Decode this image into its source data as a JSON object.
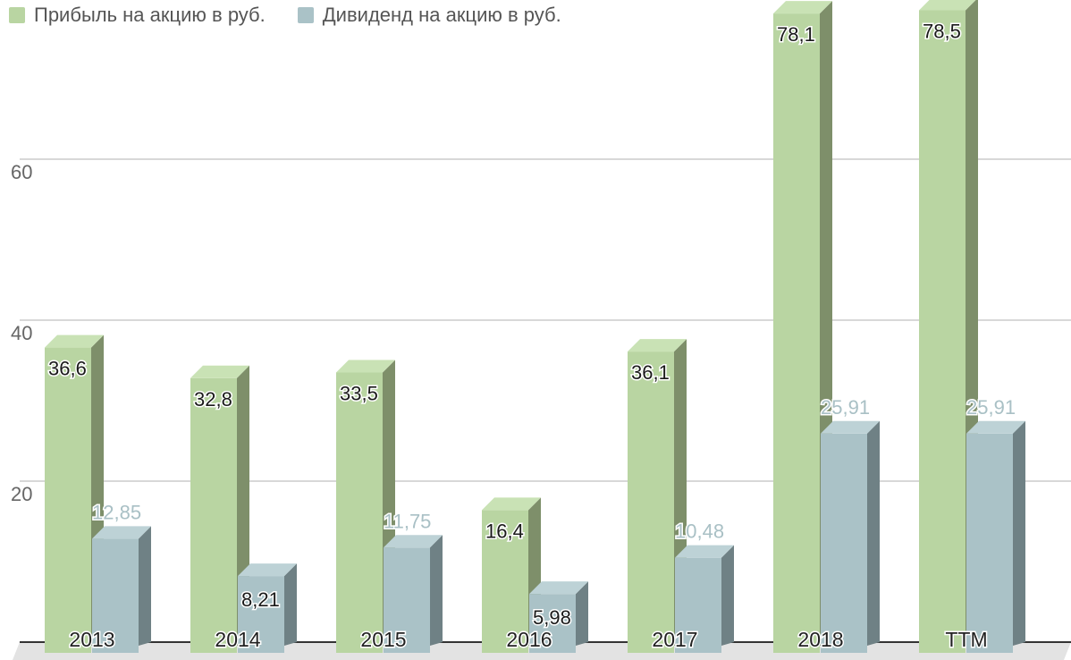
{
  "colors": {
    "profit_front": "#b9d5a2",
    "profit_side": "#7e8f6a",
    "profit_top": "#c9e2b5",
    "dividend_front": "#aac2c7",
    "dividend_side": "#6f8185",
    "dividend_top": "#bdd2d6",
    "grid": "#cccccc",
    "axis": "#333333",
    "floor": "#e3e3e3"
  },
  "chart_data": {
    "type": "bar",
    "categories": [
      "2013",
      "2014",
      "2015",
      "2016",
      "2017",
      "2018",
      "TTM"
    ],
    "series": [
      {
        "name": "Прибыль на акцию в руб.",
        "values": [
          36.6,
          32.8,
          33.5,
          16.4,
          36.1,
          78.1,
          78.5
        ],
        "labels": [
          "36,6",
          "32,8",
          "33,5",
          "16,4",
          "36,1",
          "78,1",
          "78,5"
        ]
      },
      {
        "name": "Дивиденд на акцию в руб.",
        "values": [
          12.85,
          8.21,
          11.75,
          5.98,
          10.48,
          25.91,
          25.91
        ],
        "labels": [
          "12,85",
          "8,21",
          "11,75",
          "5,98",
          "10,48",
          "25,91",
          "25,91"
        ]
      }
    ],
    "yticks": [
      20,
      40,
      60
    ],
    "ylim": [
      0,
      80
    ],
    "grid": true,
    "legend": "top-left",
    "style": "3d-bar"
  }
}
